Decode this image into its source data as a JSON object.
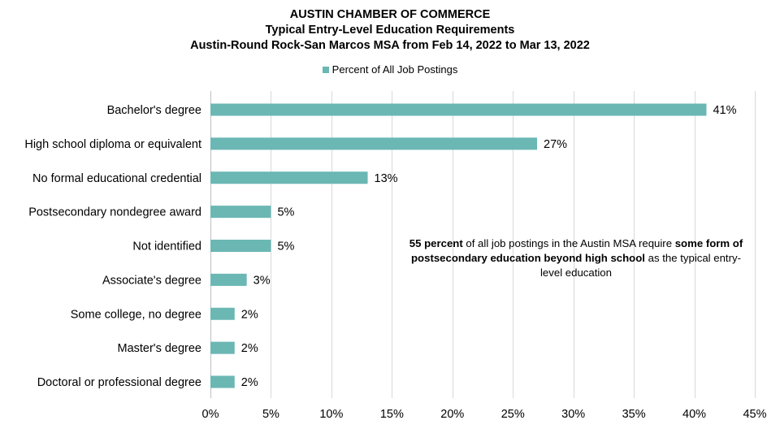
{
  "titles": {
    "line1": "AUSTIN CHAMBER OF COMMERCE",
    "line2": "Typical Entry-Level Education Requirements",
    "line3": "Austin-Round Rock-San Marcos MSA from Feb 14, 2022 to Mar 13, 2022"
  },
  "legend": {
    "label": "Percent of All Job Postings",
    "color": "#6BB7B4"
  },
  "annotation": {
    "p1": "55 percent",
    "p2": " of all job postings in the Austin MSA require ",
    "p3": "some form of postsecondary education beyond high school",
    "p4": " as the typical entry-level education"
  },
  "chart_data": {
    "type": "bar",
    "orientation": "horizontal",
    "categories": [
      "Bachelor's degree",
      "High school diploma or equivalent",
      "No formal educational credential",
      "Postsecondary nondegree award",
      "Not identified",
      "Associate's degree",
      "Some college, no degree",
      "Master's degree",
      "Doctoral or professional degree"
    ],
    "series": [
      {
        "name": "Percent of All Job Postings",
        "values": [
          41,
          27,
          13,
          5,
          5,
          3,
          2,
          2,
          2
        ],
        "labels": [
          "41%",
          "27%",
          "13%",
          "5%",
          "5%",
          "3%",
          "2%",
          "2%",
          "2%"
        ],
        "color": "#6BB7B4"
      }
    ],
    "xlim": [
      0,
      45
    ],
    "xticks": [
      0,
      5,
      10,
      15,
      20,
      25,
      30,
      35,
      40,
      45
    ],
    "xtick_labels": [
      "0%",
      "5%",
      "10%",
      "15%",
      "20%",
      "25%",
      "30%",
      "35%",
      "40%",
      "45%"
    ],
    "grid": true,
    "legend_position": "top"
  }
}
